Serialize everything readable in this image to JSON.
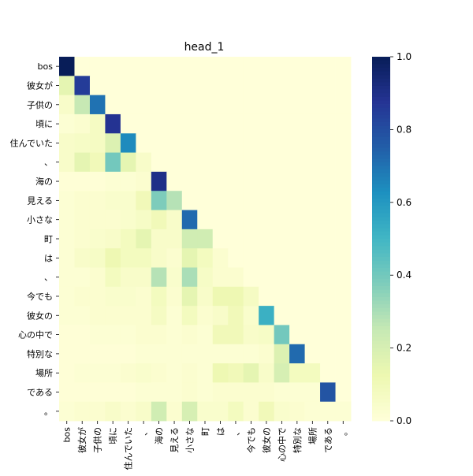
{
  "chart_data": {
    "type": "heatmap",
    "title": "head_1",
    "row_labels": [
      "bos",
      "彼女が",
      "子供の",
      "頃に",
      "住んでいた",
      "、",
      "海の",
      "見える",
      "小さな",
      "町",
      "は",
      "、",
      "今でも",
      "彼女の",
      "心の中で",
      "特別な",
      "場所",
      "である",
      "。"
    ],
    "col_labels": [
      "bos",
      "彼女が",
      "子供の",
      "頃に",
      "住んでいた",
      "、",
      "海の",
      "見える",
      "小さな",
      "町",
      "は",
      "、",
      "今でも",
      "彼女の",
      "心の中で",
      "特別な",
      "場所",
      "である",
      "。"
    ],
    "values": [
      [
        1.0,
        0,
        0,
        0,
        0,
        0,
        0,
        0,
        0,
        0,
        0,
        0,
        0,
        0,
        0,
        0,
        0,
        0,
        0
      ],
      [
        0.15,
        0.85,
        0,
        0,
        0,
        0,
        0,
        0,
        0,
        0,
        0,
        0,
        0,
        0,
        0,
        0,
        0,
        0,
        0
      ],
      [
        0.05,
        0.25,
        0.7,
        0,
        0,
        0,
        0,
        0,
        0,
        0,
        0,
        0,
        0,
        0,
        0,
        0,
        0,
        0,
        0
      ],
      [
        0.02,
        0.03,
        0.07,
        0.88,
        0,
        0,
        0,
        0,
        0,
        0,
        0,
        0,
        0,
        0,
        0,
        0,
        0,
        0,
        0
      ],
      [
        0.05,
        0.06,
        0.07,
        0.18,
        0.64,
        0,
        0,
        0,
        0,
        0,
        0,
        0,
        0,
        0,
        0,
        0,
        0,
        0,
        0
      ],
      [
        0.05,
        0.15,
        0.1,
        0.4,
        0.15,
        0.05,
        0,
        0,
        0,
        0,
        0,
        0,
        0,
        0,
        0,
        0,
        0,
        0,
        0
      ],
      [
        0.01,
        0.01,
        0.01,
        0.02,
        0.02,
        0.03,
        0.9,
        0,
        0,
        0,
        0,
        0,
        0,
        0,
        0,
        0,
        0,
        0,
        0
      ],
      [
        0.02,
        0.03,
        0.03,
        0.04,
        0.04,
        0.1,
        0.38,
        0.28,
        0,
        0,
        0,
        0,
        0,
        0,
        0,
        0,
        0,
        0,
        0
      ],
      [
        0.02,
        0.03,
        0.03,
        0.03,
        0.04,
        0.06,
        0.1,
        0.05,
        0.72,
        0,
        0,
        0,
        0,
        0,
        0,
        0,
        0,
        0,
        0
      ],
      [
        0.02,
        0.03,
        0.04,
        0.05,
        0.08,
        0.15,
        0.05,
        0.05,
        0.22,
        0.22,
        0,
        0,
        0,
        0,
        0,
        0,
        0,
        0,
        0
      ],
      [
        0.02,
        0.05,
        0.06,
        0.12,
        0.08,
        0.08,
        0.05,
        0.03,
        0.15,
        0.08,
        0.03,
        0,
        0,
        0,
        0,
        0,
        0,
        0,
        0
      ],
      [
        0.02,
        0.02,
        0.03,
        0.08,
        0.05,
        0.05,
        0.28,
        0.04,
        0.3,
        0.06,
        0.03,
        0.03,
        0,
        0,
        0,
        0,
        0,
        0,
        0
      ],
      [
        0.02,
        0.03,
        0.03,
        0.04,
        0.04,
        0.03,
        0.08,
        0.03,
        0.15,
        0.05,
        0.12,
        0.12,
        0.07,
        0,
        0,
        0,
        0,
        0,
        0
      ],
      [
        0.02,
        0.02,
        0.03,
        0.03,
        0.03,
        0.03,
        0.07,
        0.02,
        0.08,
        0.03,
        0.05,
        0.1,
        0.04,
        0.52,
        0,
        0,
        0,
        0,
        0
      ],
      [
        0.01,
        0.01,
        0.02,
        0.02,
        0.02,
        0.03,
        0.03,
        0.02,
        0.03,
        0.02,
        0.1,
        0.1,
        0.05,
        0.06,
        0.4,
        0,
        0,
        0,
        0
      ],
      [
        0.01,
        0.01,
        0.01,
        0.01,
        0.01,
        0.02,
        0.02,
        0.02,
        0.02,
        0.02,
        0.02,
        0.02,
        0.02,
        0.03,
        0.18,
        0.72,
        0,
        0,
        0
      ],
      [
        0.01,
        0.02,
        0.02,
        0.02,
        0.03,
        0.04,
        0.03,
        0.02,
        0.03,
        0.02,
        0.12,
        0.1,
        0.15,
        0.05,
        0.2,
        0.08,
        0.08,
        0,
        0
      ],
      [
        0.01,
        0.01,
        0.01,
        0.01,
        0.01,
        0.02,
        0.02,
        0.02,
        0.03,
        0.02,
        0.03,
        0.03,
        0.03,
        0.03,
        0.02,
        0.02,
        0.02,
        0.78,
        0
      ],
      [
        0.02,
        0.03,
        0.03,
        0.05,
        0.03,
        0.05,
        0.22,
        0.03,
        0.2,
        0.04,
        0.04,
        0.08,
        0.03,
        0.1,
        0.04,
        0.03,
        0.02,
        0.02,
        0.02
      ]
    ],
    "colormap": "YlGnBu",
    "vmin": 0,
    "vmax": 1,
    "colorbar_ticks": [
      "0.0",
      "0.2",
      "0.4",
      "0.6",
      "0.8",
      "1.0"
    ]
  }
}
